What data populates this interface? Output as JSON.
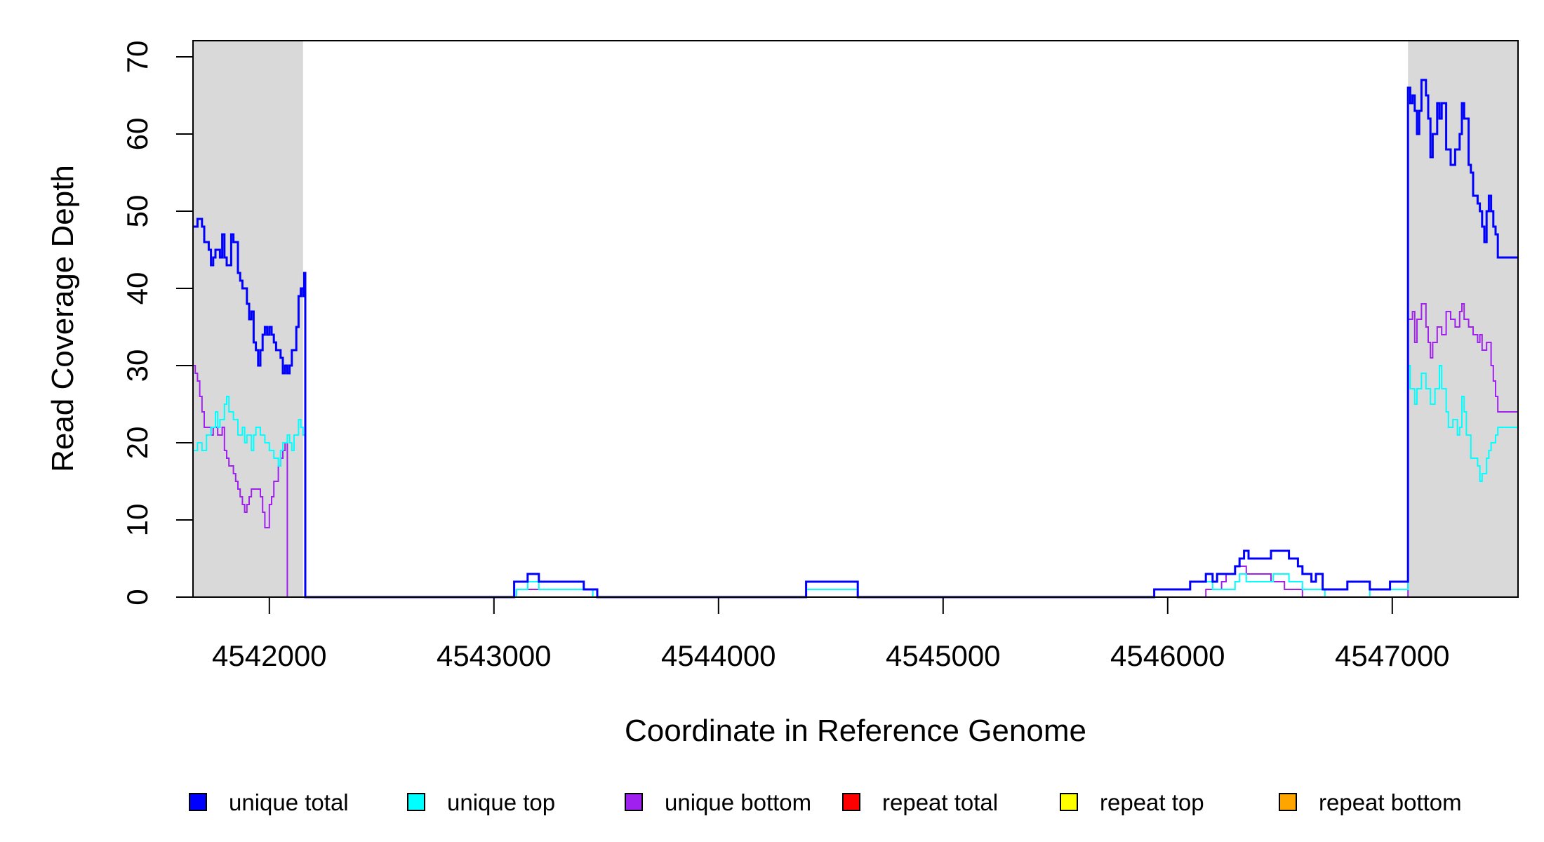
{
  "chart_data": {
    "type": "line",
    "title": "",
    "xlabel": "Coordinate in Reference Genome",
    "ylabel": "Read Coverage Depth",
    "xlim": [
      4541660,
      4547560
    ],
    "ylim": [
      0,
      70
    ],
    "x_ticks": [
      4542000,
      4543000,
      4544000,
      4545000,
      4546000,
      4547000
    ],
    "y_ticks": [
      0,
      10,
      20,
      30,
      40,
      50,
      60,
      70
    ],
    "shaded_regions": [
      {
        "x0": 4541660,
        "x1": 4542150,
        "color": "#d9d9d9"
      },
      {
        "x0": 4547070,
        "x1": 4547560,
        "color": "#d9d9d9"
      }
    ],
    "legend_position": "bottom",
    "series": [
      {
        "name": "unique total",
        "color": "#0000ff",
        "points": [
          [
            4541660,
            48
          ],
          [
            4541680,
            49
          ],
          [
            4541700,
            48
          ],
          [
            4541710,
            46
          ],
          [
            4541730,
            45
          ],
          [
            4541740,
            43
          ],
          [
            4541750,
            44
          ],
          [
            4541760,
            45
          ],
          [
            4541780,
            44
          ],
          [
            4541790,
            47
          ],
          [
            4541800,
            44
          ],
          [
            4541810,
            43
          ],
          [
            4541830,
            47
          ],
          [
            4541840,
            46
          ],
          [
            4541860,
            42
          ],
          [
            4541870,
            41
          ],
          [
            4541880,
            40
          ],
          [
            4541900,
            38
          ],
          [
            4541910,
            36
          ],
          [
            4541920,
            37
          ],
          [
            4541930,
            33
          ],
          [
            4541940,
            32
          ],
          [
            4541950,
            30
          ],
          [
            4541960,
            32
          ],
          [
            4541970,
            34
          ],
          [
            4541980,
            35
          ],
          [
            4541990,
            34
          ],
          [
            4542000,
            35
          ],
          [
            4542010,
            34
          ],
          [
            4542020,
            33
          ],
          [
            4542030,
            32
          ],
          [
            4542050,
            31
          ],
          [
            4542060,
            29
          ],
          [
            4542070,
            30
          ],
          [
            4542080,
            29
          ],
          [
            4542090,
            30
          ],
          [
            4542100,
            32
          ],
          [
            4542120,
            35
          ],
          [
            4542130,
            39
          ],
          [
            4542140,
            40
          ],
          [
            4542150,
            39
          ],
          [
            4542155,
            42
          ],
          [
            4542160,
            0
          ],
          [
            4543080,
            0
          ],
          [
            4543090,
            2
          ],
          [
            4543150,
            3
          ],
          [
            4543200,
            2
          ],
          [
            4543220,
            2
          ],
          [
            4543400,
            1
          ],
          [
            4543460,
            0
          ],
          [
            4544380,
            0
          ],
          [
            4544390,
            2
          ],
          [
            4544620,
            0
          ],
          [
            4545930,
            0
          ],
          [
            4545940,
            1
          ],
          [
            4546100,
            2
          ],
          [
            4546170,
            3
          ],
          [
            4546200,
            2
          ],
          [
            4546220,
            3
          ],
          [
            4546300,
            4
          ],
          [
            4546320,
            5
          ],
          [
            4546340,
            6
          ],
          [
            4546360,
            5
          ],
          [
            4546460,
            6
          ],
          [
            4546540,
            5
          ],
          [
            4546580,
            4
          ],
          [
            4546600,
            3
          ],
          [
            4546640,
            2
          ],
          [
            4546660,
            3
          ],
          [
            4546690,
            1
          ],
          [
            4546800,
            2
          ],
          [
            4546900,
            1
          ],
          [
            4546990,
            2
          ],
          [
            4547060,
            2
          ],
          [
            4547070,
            66
          ],
          [
            4547080,
            64
          ],
          [
            4547090,
            65
          ],
          [
            4547100,
            63
          ],
          [
            4547110,
            60
          ],
          [
            4547120,
            63
          ],
          [
            4547130,
            67
          ],
          [
            4547150,
            65
          ],
          [
            4547160,
            62
          ],
          [
            4547170,
            57
          ],
          [
            4547180,
            60
          ],
          [
            4547200,
            64
          ],
          [
            4547210,
            62
          ],
          [
            4547220,
            64
          ],
          [
            4547240,
            58
          ],
          [
            4547260,
            56
          ],
          [
            4547280,
            58
          ],
          [
            4547300,
            60
          ],
          [
            4547310,
            64
          ],
          [
            4547320,
            62
          ],
          [
            4547340,
            56
          ],
          [
            4547350,
            55
          ],
          [
            4547360,
            52
          ],
          [
            4547380,
            51
          ],
          [
            4547390,
            50
          ],
          [
            4547400,
            48
          ],
          [
            4547410,
            46
          ],
          [
            4547420,
            50
          ],
          [
            4547430,
            52
          ],
          [
            4547440,
            50
          ],
          [
            4547450,
            48
          ],
          [
            4547460,
            47
          ],
          [
            4547470,
            44
          ]
        ]
      },
      {
        "name": "unique top",
        "color": "#00ffff",
        "points": [
          [
            4541660,
            19
          ],
          [
            4541680,
            20
          ],
          [
            4541700,
            19
          ],
          [
            4541720,
            21
          ],
          [
            4541740,
            22
          ],
          [
            4541760,
            24
          ],
          [
            4541770,
            22
          ],
          [
            4541780,
            23
          ],
          [
            4541800,
            25
          ],
          [
            4541810,
            26
          ],
          [
            4541820,
            24
          ],
          [
            4541840,
            23
          ],
          [
            4541860,
            21
          ],
          [
            4541880,
            22
          ],
          [
            4541890,
            20
          ],
          [
            4541900,
            21
          ],
          [
            4541920,
            19
          ],
          [
            4541930,
            21
          ],
          [
            4541940,
            22
          ],
          [
            4541960,
            21
          ],
          [
            4541980,
            20
          ],
          [
            4542000,
            19
          ],
          [
            4542020,
            18
          ],
          [
            4542040,
            17
          ],
          [
            4542050,
            19
          ],
          [
            4542060,
            20
          ],
          [
            4542080,
            21
          ],
          [
            4542090,
            20
          ],
          [
            4542100,
            19
          ],
          [
            4542110,
            21
          ],
          [
            4542130,
            23
          ],
          [
            4542140,
            22
          ],
          [
            4542150,
            21
          ],
          [
            4542160,
            0
          ],
          [
            4543080,
            0
          ],
          [
            4543100,
            1
          ],
          [
            4543150,
            2
          ],
          [
            4543200,
            1
          ],
          [
            4543440,
            0
          ],
          [
            4544380,
            0
          ],
          [
            4544390,
            1
          ],
          [
            4544620,
            0
          ],
          [
            4545930,
            0
          ],
          [
            4545940,
            1
          ],
          [
            4546100,
            2
          ],
          [
            4546200,
            1
          ],
          [
            4546300,
            2
          ],
          [
            4546320,
            3
          ],
          [
            4546350,
            2
          ],
          [
            4546470,
            3
          ],
          [
            4546540,
            2
          ],
          [
            4546600,
            1
          ],
          [
            4546700,
            0
          ],
          [
            4546900,
            1
          ],
          [
            4547060,
            1
          ],
          [
            4547070,
            30
          ],
          [
            4547080,
            27
          ],
          [
            4547100,
            25
          ],
          [
            4547110,
            27
          ],
          [
            4547130,
            29
          ],
          [
            4547150,
            27
          ],
          [
            4547170,
            25
          ],
          [
            4547190,
            27
          ],
          [
            4547210,
            30
          ],
          [
            4547220,
            27
          ],
          [
            4547240,
            24
          ],
          [
            4547250,
            22
          ],
          [
            4547270,
            23
          ],
          [
            4547290,
            21
          ],
          [
            4547300,
            22
          ],
          [
            4547310,
            26
          ],
          [
            4547320,
            24
          ],
          [
            4547330,
            21
          ],
          [
            4547350,
            18
          ],
          [
            4547380,
            17
          ],
          [
            4547390,
            15
          ],
          [
            4547400,
            16
          ],
          [
            4547420,
            18
          ],
          [
            4547430,
            19
          ],
          [
            4547440,
            20
          ],
          [
            4547460,
            21
          ],
          [
            4547470,
            22
          ]
        ]
      },
      {
        "name": "unique bottom",
        "color": "#a020f0",
        "points": [
          [
            4541660,
            30
          ],
          [
            4541670,
            29
          ],
          [
            4541680,
            28
          ],
          [
            4541690,
            26
          ],
          [
            4541700,
            24
          ],
          [
            4541710,
            22
          ],
          [
            4541730,
            22
          ],
          [
            4541740,
            21
          ],
          [
            4541750,
            22
          ],
          [
            4541770,
            21
          ],
          [
            4541790,
            22
          ],
          [
            4541800,
            19
          ],
          [
            4541810,
            18
          ],
          [
            4541820,
            17
          ],
          [
            4541840,
            16
          ],
          [
            4541850,
            15
          ],
          [
            4541860,
            14
          ],
          [
            4541870,
            13
          ],
          [
            4541880,
            12
          ],
          [
            4541890,
            11
          ],
          [
            4541900,
            12
          ],
          [
            4541910,
            13
          ],
          [
            4541920,
            14
          ],
          [
            4541960,
            13
          ],
          [
            4541970,
            11
          ],
          [
            4541980,
            9
          ],
          [
            4542000,
            12
          ],
          [
            4542010,
            13
          ],
          [
            4542020,
            15
          ],
          [
            4542040,
            17
          ],
          [
            4542050,
            18
          ],
          [
            4542060,
            19
          ],
          [
            4542070,
            20
          ],
          [
            4542080,
            0
          ],
          [
            4543080,
            0
          ],
          [
            4543100,
            1
          ],
          [
            4543440,
            0
          ],
          [
            4544380,
            0
          ],
          [
            4544390,
            1
          ],
          [
            4544620,
            0
          ],
          [
            4545930,
            0
          ],
          [
            4546170,
            1
          ],
          [
            4546240,
            2
          ],
          [
            4546260,
            3
          ],
          [
            4546300,
            4
          ],
          [
            4546350,
            3
          ],
          [
            4546460,
            2
          ],
          [
            4546520,
            1
          ],
          [
            4546600,
            0
          ],
          [
            4547060,
            0
          ],
          [
            4547070,
            36
          ],
          [
            4547090,
            37
          ],
          [
            4547100,
            33
          ],
          [
            4547110,
            36
          ],
          [
            4547130,
            38
          ],
          [
            4547150,
            35
          ],
          [
            4547160,
            33
          ],
          [
            4547170,
            31
          ],
          [
            4547180,
            33
          ],
          [
            4547200,
            35
          ],
          [
            4547220,
            34
          ],
          [
            4547240,
            37
          ],
          [
            4547260,
            36
          ],
          [
            4547280,
            35
          ],
          [
            4547300,
            37
          ],
          [
            4547310,
            38
          ],
          [
            4547320,
            36
          ],
          [
            4547340,
            35
          ],
          [
            4547360,
            34
          ],
          [
            4547380,
            33
          ],
          [
            4547390,
            34
          ],
          [
            4547400,
            32
          ],
          [
            4547420,
            33
          ],
          [
            4547440,
            30
          ],
          [
            4547450,
            28
          ],
          [
            4547460,
            26
          ],
          [
            4547470,
            24
          ]
        ]
      },
      {
        "name": "repeat total",
        "color": "#ff0000",
        "points": [
          [
            4541660,
            0
          ],
          [
            4547560,
            0
          ]
        ]
      },
      {
        "name": "repeat top",
        "color": "#ffff00",
        "points": [
          [
            4541660,
            0
          ],
          [
            4547560,
            0
          ]
        ]
      },
      {
        "name": "repeat bottom",
        "color": "#ffa500",
        "points": [
          [
            4541660,
            0
          ],
          [
            4547560,
            0
          ]
        ]
      }
    ]
  }
}
